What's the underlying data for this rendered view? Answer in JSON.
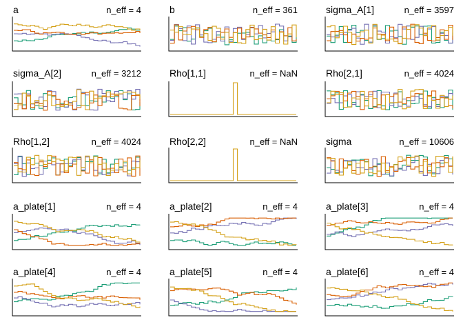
{
  "chart_data": {
    "type": "line",
    "kind": "trankplot",
    "layout": {
      "rows": 5,
      "cols": 3
    },
    "chain_colors": [
      "#1b9e77",
      "#7570b3",
      "#d4a017",
      "#d95f02"
    ],
    "panels": [
      {
        "title": "a",
        "n_eff": "n_eff = 4",
        "style": "mixed",
        "seed": 11
      },
      {
        "title": "b",
        "n_eff": "n_eff = 361",
        "style": "noisy",
        "seed": 12
      },
      {
        "title": "sigma_A[1]",
        "n_eff": "n_eff = 3597",
        "style": "noisy",
        "seed": 13
      },
      {
        "title": "sigma_A[2]",
        "n_eff": "n_eff = 3212",
        "style": "noisy",
        "seed": 14
      },
      {
        "title": "Rho[1,1]",
        "n_eff": "n_eff = NaN",
        "style": "spike",
        "seed": 15
      },
      {
        "title": "Rho[2,1]",
        "n_eff": "n_eff = 4024",
        "style": "noisy",
        "seed": 16
      },
      {
        "title": "Rho[1,2]",
        "n_eff": "n_eff = 4024",
        "style": "noisy",
        "seed": 17
      },
      {
        "title": "Rho[2,2]",
        "n_eff": "n_eff = NaN",
        "style": "spike",
        "seed": 18
      },
      {
        "title": "sigma",
        "n_eff": "n_eff = 10606",
        "style": "noisy",
        "seed": 19
      },
      {
        "title": "a_plate[1]",
        "n_eff": "n_eff = 4",
        "style": "mixed",
        "seed": 21
      },
      {
        "title": "a_plate[2]",
        "n_eff": "n_eff = 4",
        "style": "mixed",
        "seed": 22
      },
      {
        "title": "a_plate[3]",
        "n_eff": "n_eff = 4",
        "style": "mixed",
        "seed": 23
      },
      {
        "title": "a_plate[4]",
        "n_eff": "n_eff = 4",
        "style": "mixed",
        "seed": 24
      },
      {
        "title": "a_plate[5]",
        "n_eff": "n_eff = 4",
        "style": "mixed",
        "seed": 25
      },
      {
        "title": "a_plate[6]",
        "n_eff": "n_eff = 4",
        "style": "mixed",
        "seed": 26
      }
    ]
  }
}
